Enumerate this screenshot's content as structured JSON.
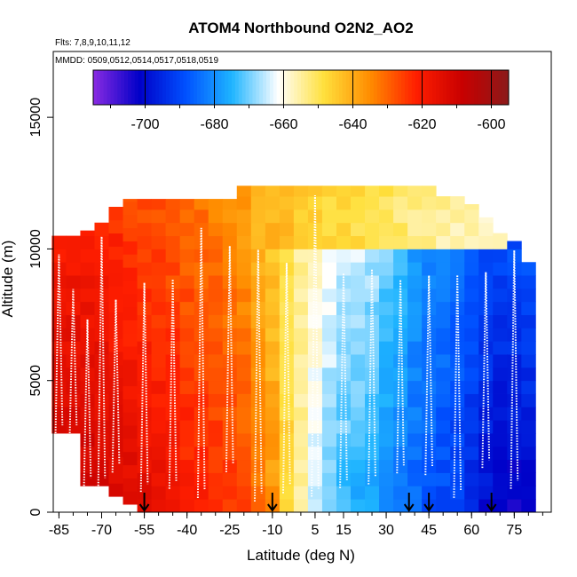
{
  "chart_data": {
    "type": "heatmap",
    "title": "ATOM4 Northbound O2N2_AO2",
    "annotations": [
      "Flts: 7,8,9,10,11,12",
      "MMDD: 0509,0512,0514,0517,0518,0519"
    ],
    "xlabel": "Latitude (deg N)",
    "ylabel": "Altitude (m)",
    "xlim": [
      -87,
      88
    ],
    "ylim": [
      0,
      17500
    ],
    "x_ticks": [
      -85,
      -70,
      -55,
      -40,
      -25,
      -10,
      5,
      15,
      30,
      45,
      60,
      75
    ],
    "x_tick_labels": [
      "-85",
      "-70",
      "-55",
      "-40",
      "-25",
      "-10",
      "5",
      "15",
      "30",
      "45",
      "60",
      "75"
    ],
    "y_ticks": [
      0,
      5000,
      10000,
      15000
    ],
    "y_tick_labels": [
      "0",
      "5000",
      "10000",
      "15000"
    ],
    "colorbar": {
      "range": [
        -715,
        -595
      ],
      "ticks": [
        -700,
        -680,
        -660,
        -640,
        -620,
        -600
      ],
      "tick_labels": [
        "-700",
        "-680",
        "-660",
        "-640",
        "-620",
        "-600"
      ],
      "colors": [
        "#8a2be2",
        "#0000c8",
        "#0050ff",
        "#1eb4ff",
        "#ffffff",
        "#ffe03c",
        "#ff8c00",
        "#ff1e00",
        "#c80000",
        "#8b1a1a"
      ]
    },
    "profile_latitudes": [
      -55,
      -10,
      38,
      45,
      67
    ],
    "x_grid": [
      -85,
      -80,
      -75,
      -70,
      -65,
      -60,
      -55,
      -50,
      -45,
      -40,
      -35,
      -30,
      -25,
      -20,
      -15,
      -10,
      -5,
      0,
      5,
      10,
      15,
      20,
      25,
      30,
      35,
      40,
      45,
      50,
      55,
      60,
      65,
      70,
      75,
      80
    ],
    "altitude_top": [
      10500,
      10500,
      10700,
      11000,
      11600,
      11900,
      11900,
      11900,
      11900,
      11900,
      11900,
      11900,
      11900,
      12400,
      12400,
      12400,
      12400,
      12400,
      12400,
      12400,
      12400,
      12400,
      12400,
      12400,
      12400,
      12400,
      12400,
      12000,
      12000,
      11700,
      11200,
      10600,
      10300,
      9500
    ],
    "altitude_bottom": [
      3000,
      3000,
      1000,
      1000,
      600,
      300,
      0,
      0,
      0,
      0,
      0,
      0,
      0,
      0,
      0,
      0,
      0,
      0,
      0,
      0,
      0,
      0,
      0,
      0,
      0,
      0,
      0,
      0,
      0,
      0,
      0,
      0,
      0,
      0
    ],
    "value_low": [
      -608,
      -608,
      -609,
      -610,
      -612,
      -613,
      -614,
      -616,
      -618,
      -620,
      -621,
      -622,
      -624,
      -626,
      -630,
      -636,
      -646,
      -655,
      -664,
      -670,
      -674,
      -676,
      -678,
      -680,
      -683,
      -686,
      -688,
      -690,
      -692,
      -696,
      -700,
      -702,
      -703,
      -702
    ],
    "value_high": [
      -622,
      -622,
      -622,
      -623,
      -624,
      -626,
      -627,
      -628,
      -630,
      -631,
      -632,
      -634,
      -636,
      -638,
      -642,
      -646,
      -650,
      -654,
      -657,
      -660,
      -662,
      -662,
      -664,
      -668,
      -672,
      -676,
      -678,
      -680,
      -682,
      -684,
      -686,
      -688,
      -686,
      -684
    ],
    "upper_layer": {
      "altitude": 10000,
      "x_range": [
        -10,
        70
      ],
      "value": -638
    }
  }
}
